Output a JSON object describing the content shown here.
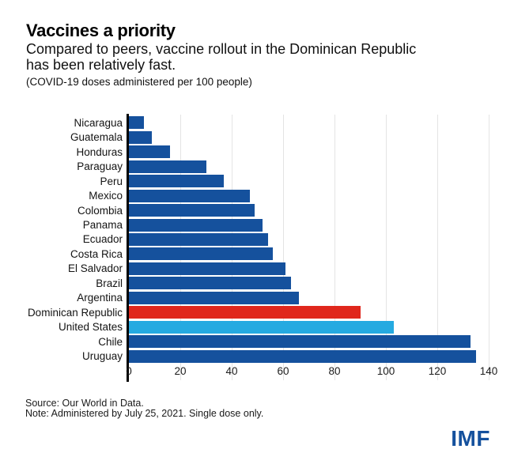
{
  "header": {
    "title": "Vaccines a priority",
    "subtitle": "Compared to peers, vaccine rollout in the Dominican Republic\nhas been relatively fast.",
    "caption": "(COVID-19 doses administered per 100 people)"
  },
  "chart_data": {
    "type": "bar",
    "orientation": "horizontal",
    "title": "Vaccines a priority",
    "subtitle": "Compared to peers, vaccine rollout in the Dominican Republic has been relatively fast.",
    "unit_label": "(COVID-19 doses administered per 100 people)",
    "categories": [
      "Nicaragua",
      "Guatemala",
      "Honduras",
      "Paraguay",
      "Peru",
      "Mexico",
      "Colombia",
      "Panama",
      "Ecuador",
      "Costa Rica",
      "El Salvador",
      "Brazil",
      "Argentina",
      "Dominican Republic",
      "United States",
      "Chile",
      "Uruguay"
    ],
    "values": [
      6,
      9,
      16,
      30,
      37,
      47,
      49,
      52,
      54,
      56,
      61,
      63,
      66,
      90,
      103,
      133,
      135
    ],
    "colors": [
      "default",
      "default",
      "default",
      "default",
      "default",
      "default",
      "default",
      "default",
      "default",
      "default",
      "default",
      "default",
      "default",
      "highlight",
      "secondary",
      "default",
      "default"
    ],
    "xlabel": "",
    "ylabel": "",
    "xlim": [
      0,
      140
    ],
    "xticks": [
      0,
      20,
      40,
      60,
      80,
      100,
      120,
      140
    ],
    "grid": "vertical",
    "legend_position": "none"
  },
  "colors": {
    "default": "#15519D",
    "highlight": "#E0271C",
    "secondary": "#25AAE1",
    "logo": "#15519D",
    "axis": "#000000",
    "gridline": "#E4E4E4"
  },
  "footer": {
    "source": "Source: Our World in Data.",
    "note": "Note: Administered by July 25, 2021. Single dose only.",
    "logo": "IMF"
  }
}
